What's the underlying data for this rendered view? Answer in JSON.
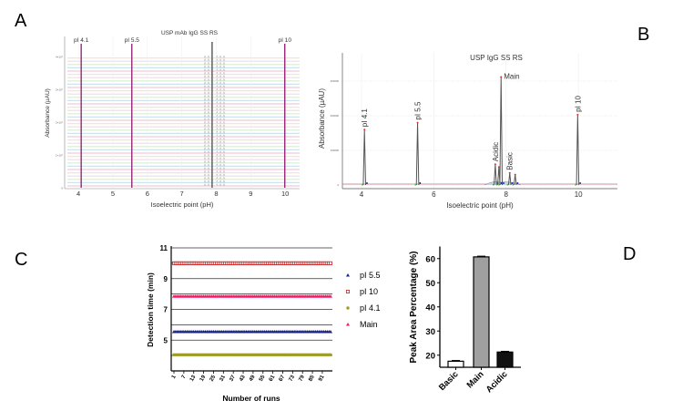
{
  "panel_labels": {
    "a": "A",
    "b": "B",
    "c": "C",
    "d": "D"
  },
  "chart_data": [
    {
      "panel": "A",
      "type": "line",
      "title": "USP mAb IgG SS RS",
      "xlabel": "Isoelectric point (pH)",
      "ylabel": "Absorbance (µAU)",
      "xlim": [
        3.6,
        10.42
      ],
      "xticks": [
        "4",
        "5",
        "6",
        "7",
        "8",
        "9",
        "10"
      ],
      "yticks": [
        "0",
        "1×10⁵",
        "2×10⁵",
        "3×10⁵",
        "4×10⁵"
      ],
      "grid": true,
      "stacked_traces": 40,
      "peak_labels": [
        {
          "text": "pI 4.1",
          "x": 4.08
        },
        {
          "text": "pI 5.5",
          "x": 5.55
        },
        {
          "text": "pI 10",
          "x": 9.99
        }
      ],
      "main_peak_x": 7.88,
      "minor_peaks_x": [
        7.7,
        7.8,
        8.05,
        8.15,
        8.25
      ],
      "colors": {
        "marker_line": "#8b1a6b",
        "main": "#555555",
        "traces": [
          "#f2c9d6",
          "#cde3f0",
          "#d8ecd0",
          "#eadcf2",
          "#f5e6c8"
        ]
      }
    },
    {
      "panel": "B",
      "type": "line",
      "title": "USP  IgG SS RS",
      "xlabel": "Isoelectric point (pH)",
      "ylabel": "Absorbance (µAU)",
      "xlim": [
        3.47,
        11.08
      ],
      "ylim": [
        -8000,
        400000
      ],
      "xticks": [
        4,
        6,
        8,
        10
      ],
      "yticks": [
        0,
        100000,
        200000,
        300000
      ],
      "grid": true,
      "peaks": [
        {
          "x": 4.08,
          "y": 160000,
          "label": "pI 4.1"
        },
        {
          "x": 5.55,
          "y": 180000,
          "label": "pI 5.5"
        },
        {
          "x": 7.7,
          "y": 60000,
          "label": "Acidic"
        },
        {
          "x": 7.8,
          "y": 52000,
          "label": ""
        },
        {
          "x": 7.86,
          "y": 312000,
          "label": "Main"
        },
        {
          "x": 8.1,
          "y": 35000,
          "label": "Basic"
        },
        {
          "x": 8.25,
          "y": 30000,
          "label": ""
        },
        {
          "x": 9.98,
          "y": 203000,
          "label": "pI 10"
        }
      ],
      "colors": {
        "trace": "#555555",
        "apex": "#e03030",
        "start": "#30c030",
        "end": "#2030a0",
        "baseline": "#c07080"
      }
    },
    {
      "panel": "C",
      "type": "scatter",
      "xlabel": "Number of runs",
      "ylabel": "Detection time (min)",
      "ylim": [
        3,
        11
      ],
      "yticks": [
        5,
        7,
        9,
        11
      ],
      "xticks": [
        1,
        7,
        13,
        19,
        25,
        31,
        37,
        43,
        49,
        55,
        61,
        67,
        73,
        79,
        85,
        91
      ],
      "runs": 96,
      "grid": true,
      "legend": "right",
      "series": [
        {
          "name": "pI 5.5",
          "value": 5.55,
          "color": "#1a237e",
          "marker": "triangle"
        },
        {
          "name": "pI 10",
          "value": 10.0,
          "color": "#c62828",
          "marker": "open-square"
        },
        {
          "name": "pI 4.1",
          "value": 4.05,
          "color": "#9e9d24",
          "marker": "circle"
        },
        {
          "name": "Main",
          "value": 7.85,
          "color": "#e91e63",
          "marker": "triangle"
        }
      ]
    },
    {
      "panel": "D",
      "type": "bar",
      "ylabel": "Peak Area Percentage (%)",
      "ylim": [
        15,
        65
      ],
      "yticks": [
        20,
        30,
        40,
        50,
        60
      ],
      "categories": [
        "Basic",
        "Main",
        "Acidic"
      ],
      "values": [
        17.5,
        60.7,
        21.3
      ],
      "errors": [
        0.3,
        0.3,
        0.3
      ],
      "colors": [
        "#ffffff",
        "#a0a0a0",
        "#111111"
      ]
    }
  ]
}
